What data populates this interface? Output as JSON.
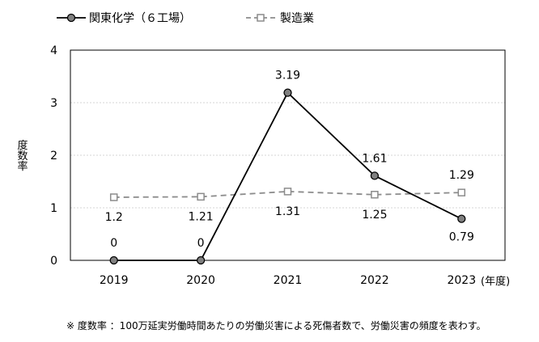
{
  "chart_data": {
    "type": "line",
    "categories": [
      "2019",
      "2020",
      "2021",
      "2022",
      "2023"
    ],
    "x_unit_label": "(年度)",
    "ylabel": "度数率",
    "ylim": [
      0,
      4
    ],
    "yticks": [
      "0",
      "1",
      "2",
      "3",
      "4"
    ],
    "grid": true,
    "legend_position": "top-left",
    "series": [
      {
        "name": "関東化学（６工場）",
        "values": [
          0,
          0,
          3.19,
          1.61,
          0.79
        ],
        "labels": [
          "0",
          "0",
          "3.19",
          "1.61",
          "0.79"
        ],
        "color": "#000000",
        "style": "solid",
        "marker": "circle"
      },
      {
        "name": "製造業",
        "values": [
          1.2,
          1.21,
          1.31,
          1.25,
          1.29
        ],
        "labels": [
          "1.2",
          "1.21",
          "1.31",
          "1.25",
          "1.29"
        ],
        "color": "#8c8c8c",
        "style": "dashed",
        "marker": "square"
      }
    ]
  },
  "footnote": "※ 度数率 ：100万延実労働時間あたりの労働災害による死傷者数で、労働災害の頻度を表わす。"
}
